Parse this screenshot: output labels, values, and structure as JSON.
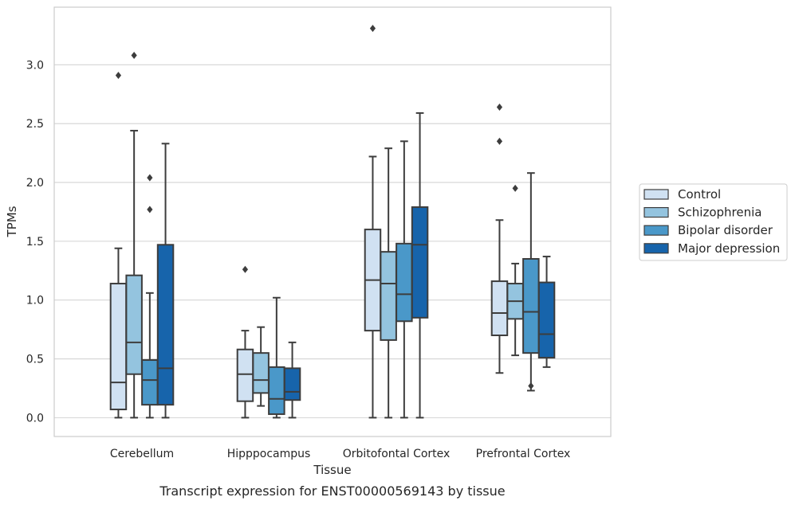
{
  "chart_data": {
    "type": "box",
    "xlabel": "Tissue",
    "ylabel": "TPMs",
    "caption": "Transcript expression for ENST00000569143 by tissue",
    "ylim": [
      -0.16,
      3.49
    ],
    "yticks": [
      0.0,
      0.5,
      1.0,
      1.5,
      2.0,
      2.5,
      3.0
    ],
    "ytick_labels": [
      "0.0",
      "0.5",
      "1.0",
      "1.5",
      "2.0",
      "2.5",
      "3.0"
    ],
    "grid": "horizontal",
    "legend_placement": "right",
    "categories": [
      "Cerebellum",
      "Hipppocampus",
      "Orbitofontal Cortex",
      "Prefrontal Cortex"
    ],
    "series": [
      {
        "name": "Control",
        "color": "#d0e1f2",
        "boxes": [
          {
            "whislo": 0.0,
            "q1": 0.07,
            "med": 0.3,
            "q3": 1.14,
            "whishi": 1.44,
            "fliers": [
              2.91
            ]
          },
          {
            "whislo": 0.0,
            "q1": 0.14,
            "med": 0.37,
            "q3": 0.58,
            "whishi": 0.74,
            "fliers": [
              1.26
            ]
          },
          {
            "whislo": 0.0,
            "q1": 0.74,
            "med": 1.17,
            "q3": 1.6,
            "whishi": 2.22,
            "fliers": [
              3.31
            ]
          },
          {
            "whislo": 0.38,
            "q1": 0.7,
            "med": 0.89,
            "q3": 1.16,
            "whishi": 1.68,
            "fliers": [
              2.35,
              2.64
            ]
          }
        ]
      },
      {
        "name": "Schizophrenia",
        "color": "#94c4df",
        "boxes": [
          {
            "whislo": 0.0,
            "q1": 0.37,
            "med": 0.64,
            "q3": 1.21,
            "whishi": 2.44,
            "fliers": [
              3.08
            ]
          },
          {
            "whislo": 0.1,
            "q1": 0.21,
            "med": 0.32,
            "q3": 0.55,
            "whishi": 0.77,
            "fliers": []
          },
          {
            "whislo": 0.0,
            "q1": 0.66,
            "med": 1.14,
            "q3": 1.41,
            "whishi": 2.29,
            "fliers": []
          },
          {
            "whislo": 0.53,
            "q1": 0.84,
            "med": 0.99,
            "q3": 1.14,
            "whishi": 1.31,
            "fliers": [
              1.95
            ]
          }
        ]
      },
      {
        "name": "Bipolar disorder",
        "color": "#4a98c9",
        "boxes": [
          {
            "whislo": 0.0,
            "q1": 0.11,
            "med": 0.32,
            "q3": 0.49,
            "whishi": 1.06,
            "fliers": [
              1.77,
              2.04
            ]
          },
          {
            "whislo": 0.0,
            "q1": 0.03,
            "med": 0.16,
            "q3": 0.43,
            "whishi": 1.02,
            "fliers": []
          },
          {
            "whislo": 0.0,
            "q1": 0.82,
            "med": 1.05,
            "q3": 1.48,
            "whishi": 2.35,
            "fliers": []
          },
          {
            "whislo": 0.23,
            "q1": 0.55,
            "med": 0.9,
            "q3": 1.35,
            "whishi": 2.08,
            "fliers": [
              0.27
            ]
          }
        ]
      },
      {
        "name": "Major depression",
        "color": "#1764ab",
        "boxes": [
          {
            "whislo": 0.0,
            "q1": 0.11,
            "med": 0.42,
            "q3": 1.47,
            "whishi": 2.33,
            "fliers": []
          },
          {
            "whislo": 0.0,
            "q1": 0.15,
            "med": 0.22,
            "q3": 0.42,
            "whishi": 0.64,
            "fliers": []
          },
          {
            "whislo": 0.0,
            "q1": 0.85,
            "med": 1.47,
            "q3": 1.79,
            "whishi": 2.59,
            "fliers": []
          },
          {
            "whislo": 0.43,
            "q1": 0.51,
            "med": 0.71,
            "q3": 1.15,
            "whishi": 1.37,
            "fliers": []
          }
        ]
      }
    ]
  }
}
